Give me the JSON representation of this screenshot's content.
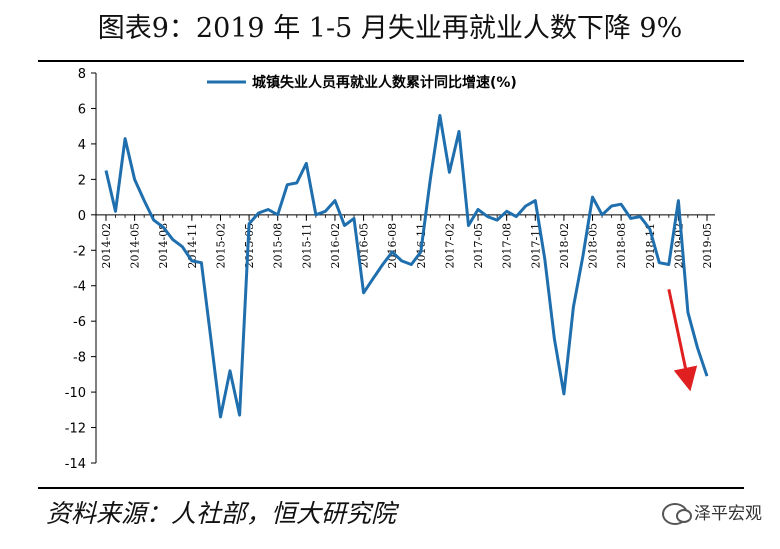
{
  "header": {
    "title": "图表9：2019 年 1-5 月失业再就业人数下降 9%"
  },
  "footer": {
    "source": "资料来源：人社部，恒大研究院",
    "watermark": "泽平宏观"
  },
  "colors": {
    "line": "#1f6fae",
    "arrow": "#e02020",
    "axis": "#000000"
  },
  "chart_data": {
    "type": "line",
    "legend_position": "top",
    "grid": false,
    "ylim": [
      -14,
      8
    ],
    "yticks": [
      8,
      6,
      4,
      2,
      0,
      -2,
      -4,
      -6,
      -8,
      -10,
      -12,
      -14
    ],
    "x_tick_labels": [
      "2014-02",
      "2014-05",
      "2014-08",
      "2014-11",
      "2015-02",
      "2015-05",
      "2015-08",
      "2015-11",
      "2016-02",
      "2016-05",
      "2016-08",
      "2016-11",
      "2017-02",
      "2017-05",
      "2017-08",
      "2017-11",
      "2018-02",
      "2018-05",
      "2018-08",
      "2018-11",
      "2019-02",
      "2019-05"
    ],
    "x": [
      "2014-02",
      "2014-03",
      "2014-04",
      "2014-05",
      "2014-06",
      "2014-07",
      "2014-08",
      "2014-09",
      "2014-10",
      "2014-11",
      "2014-12",
      "2015-01",
      "2015-02",
      "2015-03",
      "2015-04",
      "2015-05",
      "2015-06",
      "2015-07",
      "2015-08",
      "2015-09",
      "2015-10",
      "2015-11",
      "2015-12",
      "2016-01",
      "2016-02",
      "2016-03",
      "2016-04",
      "2016-05",
      "2016-06",
      "2016-07",
      "2016-08",
      "2016-09",
      "2016-10",
      "2016-11",
      "2016-12",
      "2017-01",
      "2017-02",
      "2017-03",
      "2017-04",
      "2017-05",
      "2017-06",
      "2017-07",
      "2017-08",
      "2017-09",
      "2017-10",
      "2017-11",
      "2017-12",
      "2018-01",
      "2018-02",
      "2018-03",
      "2018-04",
      "2018-05",
      "2018-06",
      "2018-07",
      "2018-08",
      "2018-09",
      "2018-10",
      "2018-11",
      "2018-12",
      "2019-01",
      "2019-02",
      "2019-03",
      "2019-04",
      "2019-05"
    ],
    "series": [
      {
        "name": "城镇失业人员再就业人数累计同比增速(%)",
        "values": [
          2.5,
          0.2,
          4.3,
          2.0,
          0.8,
          -0.3,
          -0.7,
          -1.4,
          -1.8,
          -2.6,
          -2.7,
          -7.0,
          -11.4,
          -8.8,
          -11.3,
          -0.5,
          0.1,
          0.3,
          0.0,
          1.7,
          1.8,
          2.9,
          0.0,
          0.2,
          0.8,
          -0.6,
          -0.2,
          -4.4,
          -3.6,
          -2.8,
          -2.1,
          -2.6,
          -2.8,
          -2.1,
          2.0,
          5.6,
          2.4,
          4.7,
          -0.6,
          0.3,
          -0.1,
          -0.3,
          0.2,
          -0.1,
          0.5,
          0.8,
          -2.5,
          -7.0,
          -10.1,
          -5.2,
          -2.3,
          1.0,
          0.0,
          0.5,
          0.6,
          -0.2,
          -0.1,
          -0.8,
          -2.7,
          -2.8,
          0.8,
          -5.5,
          -7.5,
          -9.1
        ]
      }
    ],
    "annotations": [
      {
        "type": "arrow",
        "from": [
          "2019-01",
          -4.2
        ],
        "to": [
          "2019-03",
          -9.3
        ]
      }
    ]
  }
}
